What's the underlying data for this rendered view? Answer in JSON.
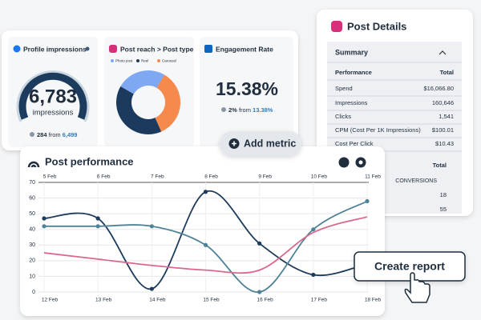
{
  "cards": [
    {
      "title": "Profile impressions",
      "value": "6,783",
      "unit": "impressions",
      "change": "284",
      "from": "from",
      "base": "6,499"
    },
    {
      "title": "Engagement Rate",
      "value": "15.38%",
      "change": "2%",
      "from": "from",
      "base": "13.38%"
    }
  ],
  "chart_data": [
    {
      "type": "donut",
      "title": "Post reach > Post type",
      "categories": [
        "Photo post",
        "Reel",
        "Carousel"
      ],
      "values": [
        25,
        40,
        35
      ],
      "colors": [
        "#7fa8f2",
        "#1c3a5e",
        "#f58a4c"
      ]
    },
    {
      "type": "line",
      "title": "Post performance",
      "categories": [
        "12 Feb",
        "13 Feb",
        "14 Feb",
        "15 Feb",
        "16 Feb",
        "17 Feb",
        "18 Feb"
      ],
      "x2_categories": [
        "5 Feb",
        "6 Feb",
        "7 Feb",
        "8 Feb",
        "9 Feb",
        "10 Feb",
        "11 Feb"
      ],
      "ylim": [
        0,
        70
      ],
      "yticks": [
        0,
        10,
        20,
        30,
        40,
        50,
        60,
        70
      ],
      "grid": true,
      "series": [
        {
          "color": "#1d3b5c",
          "markers": true,
          "values": [
            47,
            47,
            2,
            64,
            31,
            11,
            18
          ]
        },
        {
          "color": "#4f8296",
          "markers": true,
          "values": [
            42,
            42,
            42,
            30,
            0,
            40,
            58
          ]
        },
        {
          "color": "#d9688a",
          "markers": false,
          "values": [
            25,
            21,
            17,
            14,
            14,
            38,
            48
          ]
        }
      ]
    }
  ],
  "buttons": {
    "add_metric": "Add metric",
    "create_report": "Create report"
  },
  "post_details": {
    "title": "Post Details",
    "section": "Summary",
    "header": [
      "Performance",
      "Total"
    ],
    "rows": [
      [
        "Spend",
        "$16,066.80"
      ],
      [
        "Impressions",
        "160,646"
      ],
      [
        "Clicks",
        "1,541"
      ],
      [
        "CPM (Cost Per 1K Impressions)",
        "$100.01"
      ],
      [
        "Cost Per Click",
        "$10.43"
      ]
    ],
    "second_header": "Total",
    "second_cells": [
      "CONVERSIONS",
      "18",
      "55"
    ]
  }
}
